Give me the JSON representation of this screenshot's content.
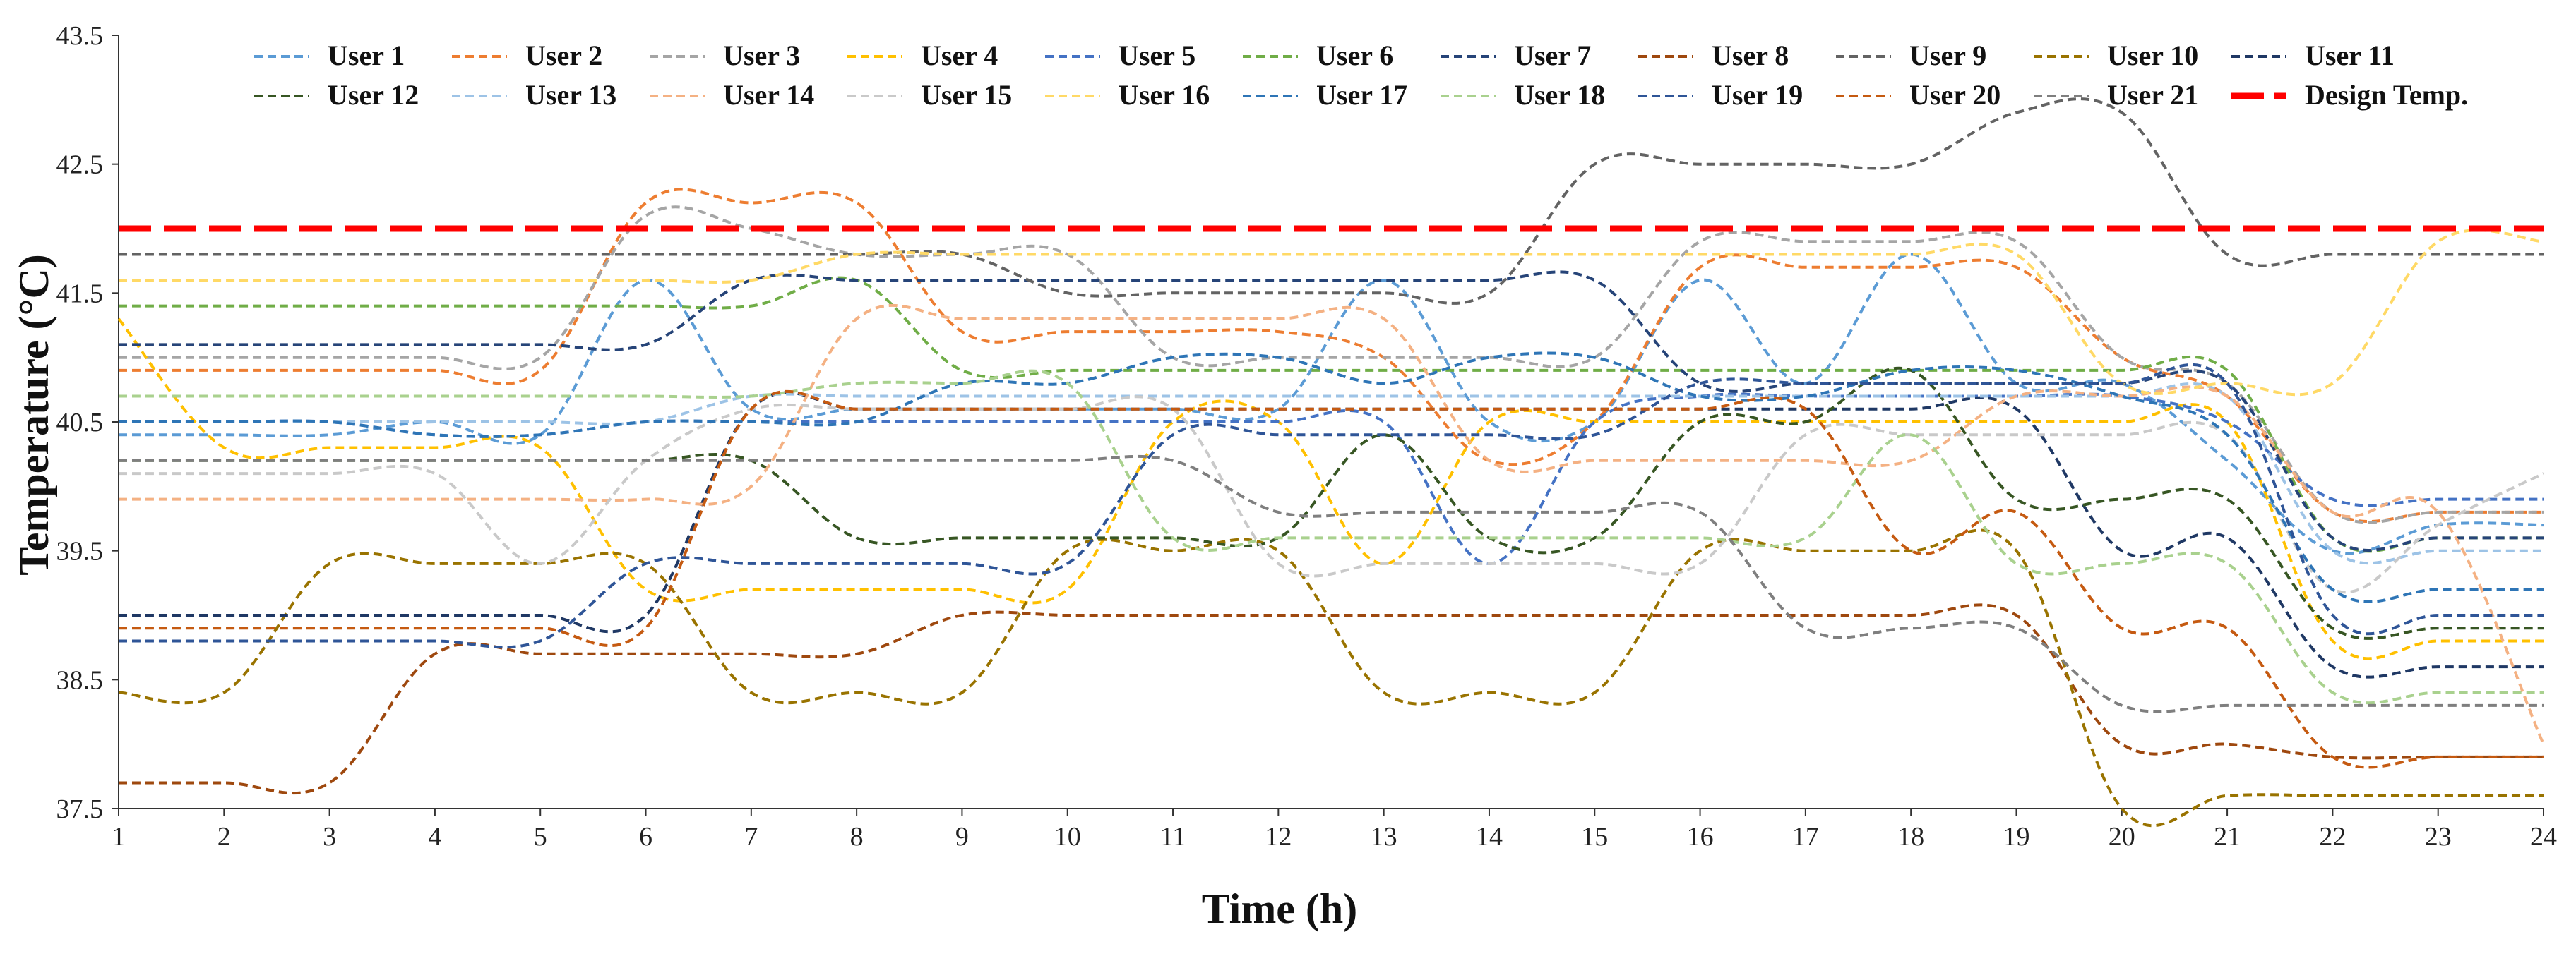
{
  "chart_data": {
    "type": "line",
    "title": "",
    "xlabel": "Time (h)",
    "ylabel": "Temperature (°C)",
    "x": [
      1,
      2,
      3,
      4,
      5,
      6,
      7,
      8,
      9,
      10,
      11,
      12,
      13,
      14,
      15,
      16,
      17,
      18,
      19,
      20,
      21,
      22,
      23,
      24
    ],
    "xlim": [
      1,
      24
    ],
    "ylim": [
      37.5,
      43.5
    ],
    "xticks": [
      "1",
      "2",
      "3",
      "4",
      "5",
      "6",
      "7",
      "8",
      "9",
      "10",
      "11",
      "12",
      "13",
      "14",
      "15",
      "16",
      "17",
      "18",
      "19",
      "20",
      "21",
      "22",
      "23",
      "24"
    ],
    "yticks": [
      "37.5",
      "38.5",
      "39.5",
      "40.5",
      "41.5",
      "42.5",
      "43.5"
    ],
    "grid": false,
    "legend_position": "top",
    "series": [
      {
        "name": "User 1",
        "color": "#5B9BD5",
        "values": [
          40.4,
          40.4,
          40.4,
          40.5,
          40.4,
          41.6,
          40.6,
          40.6,
          40.6,
          40.6,
          40.6,
          40.6,
          41.6,
          40.5,
          40.5,
          41.6,
          40.8,
          41.8,
          40.8,
          40.8,
          40.2,
          39.5,
          39.7,
          39.7
        ]
      },
      {
        "name": "User 2",
        "color": "#ED7D31",
        "values": [
          40.9,
          40.9,
          40.9,
          40.9,
          40.9,
          42.2,
          42.2,
          42.2,
          41.2,
          41.2,
          41.2,
          41.2,
          41.0,
          40.2,
          40.5,
          41.7,
          41.7,
          41.7,
          41.7,
          41.0,
          40.7,
          39.8,
          39.8,
          39.8
        ]
      },
      {
        "name": "User 3",
        "color": "#A5A5A5",
        "values": [
          41.0,
          41.0,
          41.0,
          41.0,
          41.0,
          42.1,
          42.0,
          41.8,
          41.8,
          41.8,
          41.0,
          41.0,
          41.0,
          41.0,
          41.0,
          41.9,
          41.9,
          41.9,
          41.9,
          41.0,
          40.8,
          39.8,
          39.8,
          39.8
        ]
      },
      {
        "name": "User 4",
        "color": "#FFC000",
        "values": [
          41.3,
          40.3,
          40.3,
          40.3,
          40.3,
          39.2,
          39.2,
          39.2,
          39.2,
          39.2,
          40.5,
          40.5,
          39.4,
          40.5,
          40.5,
          40.5,
          40.5,
          40.5,
          40.5,
          40.5,
          40.5,
          38.8,
          38.8,
          38.8
        ]
      },
      {
        "name": "User 5",
        "color": "#4472C4",
        "values": [
          40.5,
          40.5,
          40.5,
          40.4,
          40.4,
          40.5,
          40.5,
          40.5,
          40.5,
          40.5,
          40.5,
          40.5,
          40.5,
          39.4,
          40.5,
          40.7,
          40.7,
          40.7,
          40.7,
          40.7,
          40.5,
          39.9,
          39.9,
          39.9
        ]
      },
      {
        "name": "User 6",
        "color": "#70AD47",
        "values": [
          41.4,
          41.4,
          41.4,
          41.4,
          41.4,
          41.4,
          41.4,
          41.6,
          40.9,
          40.9,
          40.9,
          40.9,
          40.9,
          40.9,
          40.9,
          40.9,
          40.9,
          40.9,
          40.9,
          40.9,
          40.9,
          39.6,
          39.6,
          39.6
        ]
      },
      {
        "name": "User 7",
        "color": "#264478",
        "values": [
          41.1,
          41.1,
          41.1,
          41.1,
          41.1,
          41.1,
          41.6,
          41.6,
          41.6,
          41.6,
          41.6,
          41.6,
          41.6,
          41.6,
          41.6,
          40.8,
          40.8,
          40.8,
          40.8,
          40.8,
          40.8,
          39.6,
          39.6,
          39.6
        ]
      },
      {
        "name": "User 8",
        "color": "#9E480E",
        "values": [
          37.7,
          37.7,
          37.7,
          38.7,
          38.7,
          38.7,
          38.7,
          38.7,
          39.0,
          39.0,
          39.0,
          39.0,
          39.0,
          39.0,
          39.0,
          39.0,
          39.0,
          39.0,
          39.0,
          38.0,
          38.0,
          37.9,
          37.9,
          37.9
        ]
      },
      {
        "name": "User 9",
        "color": "#636363",
        "values": [
          41.8,
          41.8,
          41.8,
          41.8,
          41.8,
          41.8,
          41.8,
          41.8,
          41.8,
          41.5,
          41.5,
          41.5,
          41.5,
          41.5,
          42.5,
          42.5,
          42.5,
          42.5,
          42.9,
          42.9,
          41.8,
          41.8,
          41.8,
          41.8
        ]
      },
      {
        "name": "User 10",
        "color": "#997300",
        "values": [
          38.4,
          38.4,
          39.4,
          39.4,
          39.4,
          39.4,
          38.4,
          38.4,
          38.4,
          39.5,
          39.5,
          39.5,
          38.4,
          38.4,
          38.4,
          39.5,
          39.5,
          39.5,
          39.5,
          37.5,
          37.6,
          37.6,
          37.6,
          37.6
        ]
      },
      {
        "name": "User 11",
        "color": "#1F3864",
        "values": [
          39.0,
          39.0,
          39.0,
          39.0,
          39.0,
          39.0,
          40.6,
          40.6,
          40.6,
          40.6,
          40.6,
          40.6,
          40.6,
          40.6,
          40.6,
          40.6,
          40.6,
          40.6,
          40.6,
          39.5,
          39.6,
          38.6,
          38.6,
          38.6
        ]
      },
      {
        "name": "User 12",
        "color": "#375623",
        "values": [
          40.2,
          40.2,
          40.2,
          40.2,
          40.2,
          40.2,
          40.2,
          39.6,
          39.6,
          39.6,
          39.6,
          39.6,
          40.4,
          39.6,
          39.6,
          40.5,
          40.5,
          40.9,
          39.9,
          39.9,
          39.9,
          38.9,
          38.9,
          38.9
        ]
      },
      {
        "name": "User 13",
        "color": "#9DC3E6",
        "values": [
          40.5,
          40.5,
          40.5,
          40.5,
          40.5,
          40.5,
          40.7,
          40.7,
          40.7,
          40.7,
          40.7,
          40.7,
          40.7,
          40.7,
          40.7,
          40.7,
          40.7,
          40.7,
          40.7,
          40.7,
          40.7,
          39.5,
          39.5,
          39.5
        ]
      },
      {
        "name": "User 14",
        "color": "#F4B183",
        "values": [
          39.9,
          39.9,
          39.9,
          39.9,
          39.9,
          39.9,
          40.0,
          41.3,
          41.3,
          41.3,
          41.3,
          41.3,
          41.3,
          40.2,
          40.2,
          40.2,
          40.2,
          40.2,
          40.7,
          40.7,
          40.7,
          39.8,
          39.8,
          38.0
        ]
      },
      {
        "name": "User 15",
        "color": "#C9C9C9",
        "values": [
          40.1,
          40.1,
          40.1,
          40.1,
          39.4,
          40.2,
          40.6,
          40.6,
          40.6,
          40.6,
          40.6,
          39.4,
          39.4,
          39.4,
          39.4,
          39.4,
          40.4,
          40.4,
          40.4,
          40.4,
          40.4,
          39.2,
          39.7,
          40.1
        ]
      },
      {
        "name": "User 16",
        "color": "#FFD966",
        "values": [
          41.6,
          41.6,
          41.6,
          41.6,
          41.6,
          41.6,
          41.6,
          41.8,
          41.8,
          41.8,
          41.8,
          41.8,
          41.8,
          41.8,
          41.8,
          41.8,
          41.8,
          41.8,
          41.8,
          40.8,
          40.8,
          40.8,
          41.9,
          41.9
        ]
      },
      {
        "name": "User 17",
        "color": "#2E75B6",
        "values": [
          40.5,
          40.5,
          40.5,
          40.4,
          40.4,
          40.5,
          40.5,
          40.5,
          40.8,
          40.8,
          41.0,
          41.0,
          40.8,
          41.0,
          41.0,
          40.7,
          40.7,
          40.9,
          40.9,
          40.7,
          40.4,
          39.2,
          39.2,
          39.2
        ]
      },
      {
        "name": "User 18",
        "color": "#A9D18E",
        "values": [
          40.7,
          40.7,
          40.7,
          40.7,
          40.7,
          40.7,
          40.7,
          40.8,
          40.8,
          40.8,
          39.6,
          39.6,
          39.6,
          39.6,
          39.6,
          39.6,
          39.6,
          40.4,
          39.4,
          39.4,
          39.4,
          38.4,
          38.4,
          38.4
        ]
      },
      {
        "name": "User 19",
        "color": "#2F5597",
        "values": [
          38.8,
          38.8,
          38.8,
          38.8,
          38.8,
          39.4,
          39.4,
          39.4,
          39.4,
          39.4,
          40.4,
          40.4,
          40.4,
          40.4,
          40.4,
          40.8,
          40.8,
          40.8,
          40.8,
          40.8,
          40.8,
          39.0,
          39.0,
          39.0
        ]
      },
      {
        "name": "User 20",
        "color": "#C55A11",
        "values": [
          38.9,
          38.9,
          38.9,
          38.9,
          38.9,
          38.9,
          40.6,
          40.6,
          40.6,
          40.6,
          40.6,
          40.6,
          40.6,
          40.6,
          40.6,
          40.6,
          40.6,
          39.5,
          39.8,
          38.9,
          38.9,
          37.9,
          37.9,
          37.9
        ]
      },
      {
        "name": "User 21",
        "color": "#7F7F7F",
        "values": [
          40.2,
          40.2,
          40.2,
          40.2,
          40.2,
          40.2,
          40.2,
          40.2,
          40.2,
          40.2,
          40.2,
          39.8,
          39.8,
          39.8,
          39.8,
          39.8,
          38.9,
          38.9,
          38.9,
          38.3,
          38.3,
          38.3,
          38.3,
          38.3
        ]
      }
    ],
    "reference_line": {
      "name": "Design Temp.",
      "color": "#FF0000",
      "value": 42.0
    }
  }
}
